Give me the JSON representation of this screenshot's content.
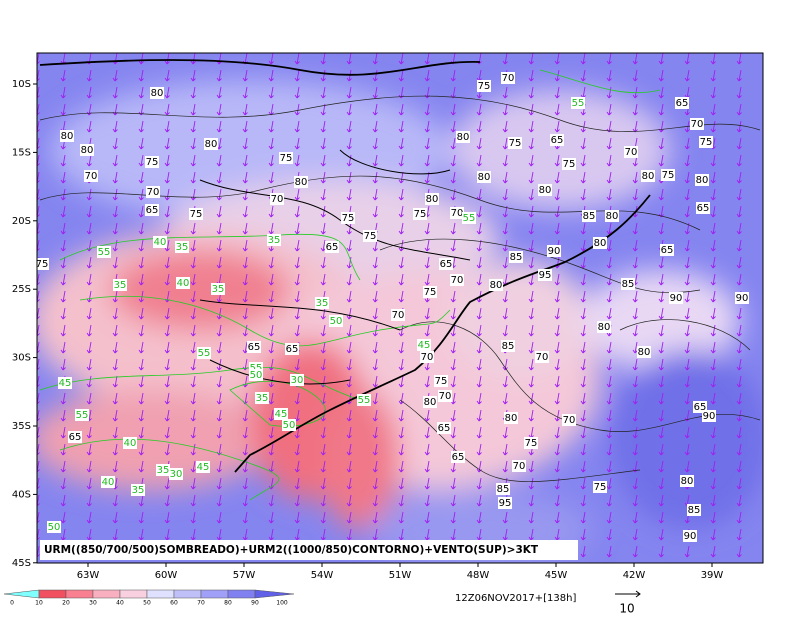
{
  "latitude_labels": [
    "10S",
    "15S",
    "20S",
    "25S",
    "30S",
    "35S",
    "40S",
    "45S"
  ],
  "longitude_labels": [
    "63W",
    "60W",
    "57W",
    "54W",
    "51W",
    "48W",
    "45W",
    "42W",
    "39W"
  ],
  "caption": "URM((850/700/500)SOMBREADO)+URM2((1000/850)CONTORNO)+VENTO(SUP)>3KT",
  "timestamp": "12Z06NOV2017+[138h]",
  "vector_scale": "10",
  "colorbar_labels": [
    0,
    10,
    20,
    30,
    40,
    50,
    60,
    70,
    80,
    90,
    100
  ],
  "black_contour_labels": [
    80,
    75,
    70,
    80,
    80,
    80,
    75,
    75,
    70,
    80,
    75,
    65,
    75,
    70,
    65,
    70,
    75,
    80,
    75,
    80,
    80,
    70,
    70,
    80,
    80,
    80,
    65,
    75,
    75,
    75,
    70,
    85,
    80,
    65,
    75,
    65,
    75,
    90,
    80,
    65,
    65,
    85,
    95,
    85,
    70,
    75,
    80,
    90,
    90,
    70,
    80,
    80,
    65,
    65,
    85,
    70,
    70,
    75,
    80,
    70,
    65,
    90,
    65,
    80,
    70,
    75,
    65,
    65,
    70,
    75,
    80,
    85,
    95,
    85,
    90
  ],
  "green_contour_labels": [
    55,
    55,
    55,
    35,
    40,
    35,
    35,
    40,
    35,
    35,
    50,
    45,
    55,
    55,
    50,
    30,
    35,
    45,
    50,
    55,
    45,
    55,
    40,
    35,
    30,
    45,
    40,
    35,
    50
  ]
}
